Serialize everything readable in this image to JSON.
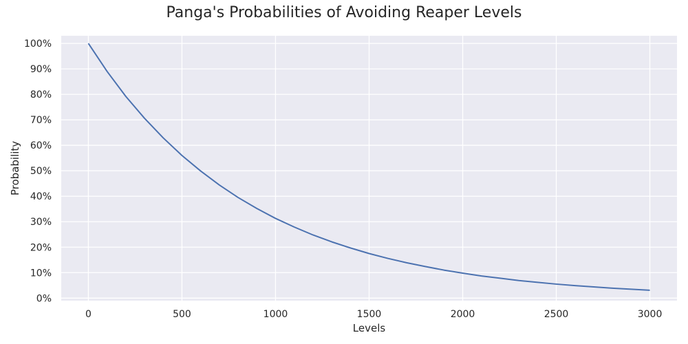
{
  "chart_data": {
    "type": "line",
    "title": "Panga's Probabilities of Avoiding Reaper Levels",
    "xlabel": "Levels",
    "ylabel": "Probability",
    "xlim": [
      -145,
      3145
    ],
    "ylim": [
      -1,
      103
    ],
    "x_ticks": [
      0,
      500,
      1000,
      1500,
      2000,
      2500,
      3000
    ],
    "y_ticks": [
      0,
      10,
      20,
      30,
      40,
      50,
      60,
      70,
      80,
      90,
      100
    ],
    "y_tick_labels": [
      "0%",
      "10%",
      "20%",
      "30%",
      "40%",
      "50%",
      "60%",
      "70%",
      "80%",
      "90%",
      "100%"
    ],
    "grid": true,
    "legend": "none",
    "colors": {
      "line": "#4c72b0",
      "plot_bg": "#eaeaf2",
      "grid": "#ffffff"
    },
    "series": [
      {
        "x": [
          0,
          100,
          200,
          300,
          400,
          500,
          600,
          700,
          800,
          900,
          1000,
          1100,
          1200,
          1300,
          1400,
          1500,
          1600,
          1700,
          1800,
          1900,
          2000,
          2100,
          2200,
          2300,
          2400,
          2500,
          2600,
          2700,
          2800,
          2900,
          3000
        ],
        "y": [
          100,
          89,
          79.2,
          70.6,
          62.9,
          56.0,
          49.9,
          44.4,
          39.5,
          35.2,
          31.3,
          27.9,
          24.8,
          22.1,
          19.7,
          17.5,
          15.6,
          13.9,
          12.4,
          11.0,
          9.8,
          8.7,
          7.8,
          6.9,
          6.2,
          5.5,
          4.9,
          4.4,
          3.9,
          3.5,
          3.1
        ]
      }
    ]
  }
}
